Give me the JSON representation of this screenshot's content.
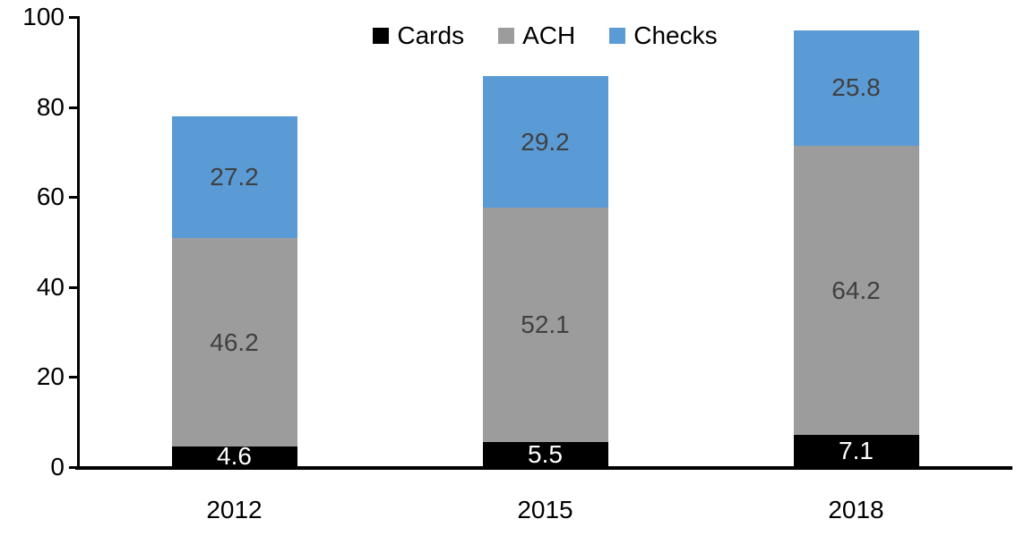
{
  "chart_data": {
    "type": "bar",
    "stacked": true,
    "title": "",
    "xlabel": "",
    "ylabel": "",
    "categories": [
      "2012",
      "2015",
      "2018"
    ],
    "series": [
      {
        "name": "Cards",
        "color": "#000000",
        "label_color": "#ffffff",
        "values": [
          4.6,
          5.5,
          7.1
        ]
      },
      {
        "name": "ACH",
        "color": "#9C9C9C",
        "label_color": "#404040",
        "values": [
          46.2,
          52.1,
          64.2
        ]
      },
      {
        "name": "Checks",
        "color": "#5B9BD5",
        "label_color": "#404040",
        "values": [
          27.2,
          29.2,
          25.8
        ]
      }
    ],
    "ylim": [
      0,
      100
    ],
    "yticks": [
      0,
      20,
      40,
      60,
      80,
      100
    ],
    "grid": false,
    "legend_position": "top-center",
    "data_labels": "inside-center"
  },
  "colors": {
    "background": "#ffffff",
    "axis": "#000000",
    "text": "#000000"
  }
}
